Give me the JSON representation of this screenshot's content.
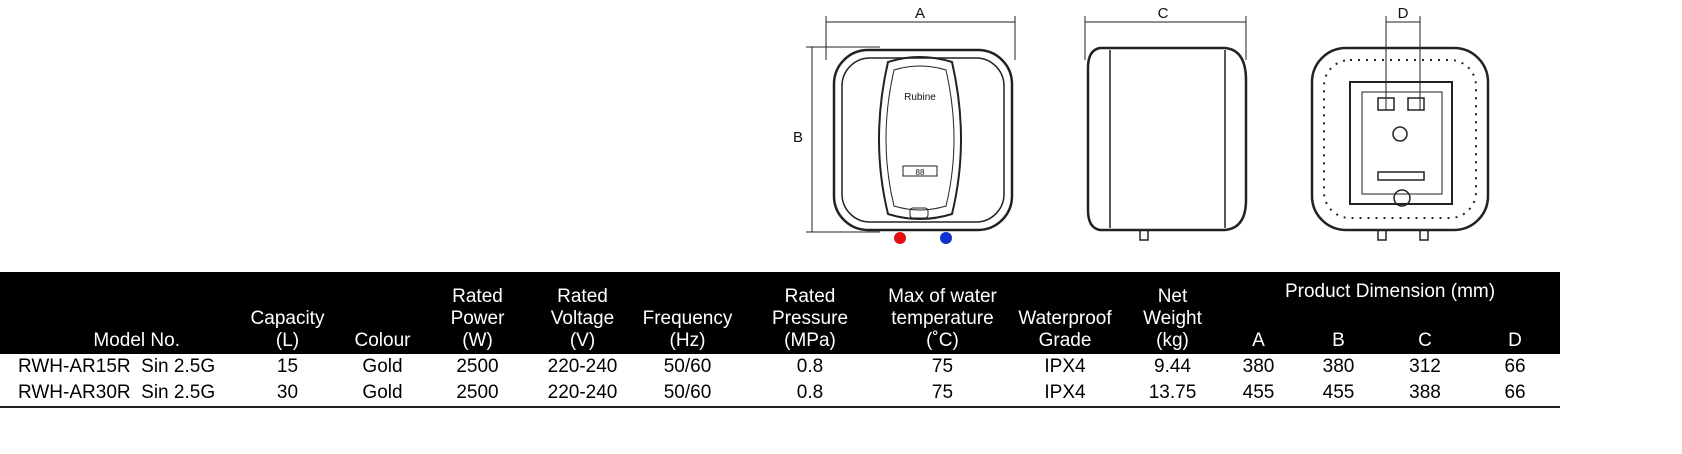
{
  "drawings": {
    "front": {
      "dimension_labels": [
        "A",
        "B"
      ],
      "brand": "Rubine",
      "display": "88"
    },
    "side": {
      "dimension_labels": [
        "C"
      ]
    },
    "back": {
      "dimension_labels": [
        "D"
      ]
    }
  },
  "table": {
    "headers": [
      [
        "Model No."
      ],
      [
        "Capacity",
        "(L)"
      ],
      [
        "Colour"
      ],
      [
        "Rated",
        "Power",
        "(W)"
      ],
      [
        "Rated",
        "Voltage",
        "(V)"
      ],
      [
        "Frequency",
        "(Hz)"
      ],
      [
        "Rated",
        "Pressure",
        "(MPa)"
      ],
      [
        "Max of water",
        "temperature",
        "(˚C)"
      ],
      [
        "Waterproof",
        "Grade"
      ],
      [
        "Net",
        "Weight",
        "(kg)"
      ]
    ],
    "dimension_header": "Product Dimension (mm)",
    "dimension_columns": [
      "A",
      "B",
      "C",
      "D"
    ],
    "rows": [
      [
        "RWH-AR15R  Sin 2.5G",
        "15",
        "Gold",
        "2500",
        "220-240",
        "50/60",
        "0.8",
        "75",
        "IPX4",
        "9.44",
        "380",
        "380",
        "312",
        "66"
      ],
      [
        "RWH-AR30R  Sin 2.5G",
        "30",
        "Gold",
        "2500",
        "220-240",
        "50/60",
        "0.8",
        "75",
        "IPX4",
        "13.75",
        "455",
        "455",
        "388",
        "66"
      ]
    ]
  }
}
